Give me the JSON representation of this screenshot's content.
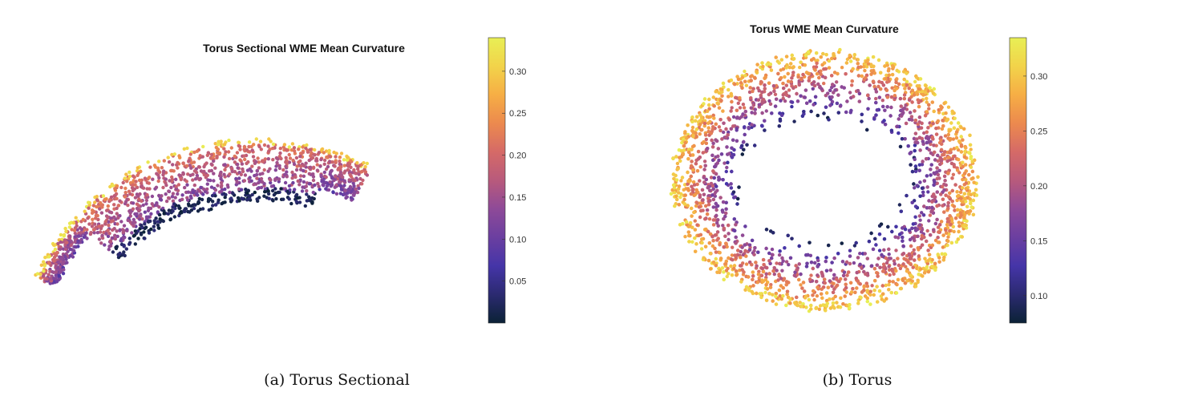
{
  "colormap_stops": [
    "#0b2236",
    "#2b2a70",
    "#4535a8",
    "#6b3fa0",
    "#8e4a98",
    "#b85a7c",
    "#d56a67",
    "#ec8a4e",
    "#f6ae45",
    "#f2d34a",
    "#e8ef55"
  ],
  "panels": [
    {
      "caption": "(a) Torus Sectional",
      "chart_data": {
        "type": "scatter",
        "title": "Torus Sectional WME Mean Curvature",
        "xlabel": "",
        "ylabel": "",
        "color_variable": "mean curvature",
        "colorbar": {
          "range": [
            0.0,
            0.34
          ],
          "ticks": [
            "0.30",
            "0.25",
            "0.20",
            "0.15",
            "0.10",
            "0.05"
          ],
          "tick_values": [
            0.3,
            0.25,
            0.2,
            0.15,
            0.1,
            0.05
          ]
        },
        "grid": false,
        "axes_visible": false,
        "shape": "partial torus section (arched cap with lower inner band)",
        "value_distribution": "outer arched top edge ~0.28-0.34; body ~0.12-0.22; lower inner band ~0.00-0.04"
      }
    },
    {
      "caption": "(b) Torus",
      "chart_data": {
        "type": "scatter",
        "title": "Torus WME Mean Curvature",
        "xlabel": "",
        "ylabel": "",
        "color_variable": "mean curvature",
        "colorbar": {
          "range": [
            0.075,
            0.335
          ],
          "ticks": [
            "0.30",
            "0.25",
            "0.20",
            "0.15",
            "0.10"
          ],
          "tick_values": [
            0.3,
            0.25,
            0.2,
            0.15,
            0.1
          ]
        },
        "grid": false,
        "axes_visible": false,
        "shape": "full torus (annulus view from above)",
        "value_distribution": "outer rim ~0.22-0.33; inner hole edge ~0.08-0.14"
      }
    }
  ]
}
